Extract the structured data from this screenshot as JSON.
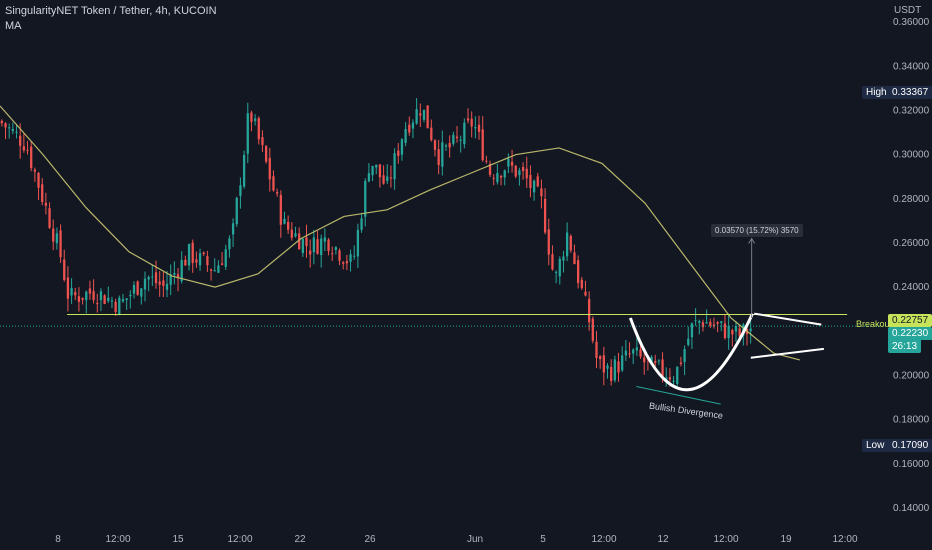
{
  "header": {
    "symbol": "SingularityNET Token / Tether, 4h, KUCOIN",
    "indicator": "MA"
  },
  "axis": {
    "currency": "USDT"
  },
  "tags": {
    "high_label": "High",
    "high_value": "0.33367",
    "low_label": "Low",
    "low_value": "0.17090",
    "breakout_label": "Breakout",
    "breakout_value": "0.22757",
    "current_value": "0.22230",
    "countdown": "26:13"
  },
  "annotations": {
    "measure": "0.03570 (15.72%) 3570",
    "divergence": "Bullish Divergence"
  },
  "colors": {
    "background": "#131722",
    "up": "#26a69a",
    "down": "#ef5350",
    "ma": "#b9b76a",
    "breakout": "#c6e35a",
    "current": "#26a69a",
    "tag_dark": "#1e2a44"
  },
  "chart_data": {
    "type": "candlestick",
    "title": "SingularityNET Token / Tether, 4h, KUCOIN",
    "ylabel": "USDT",
    "ylim": [
      0.13,
      0.37
    ],
    "y_ticks": [
      "0.36000",
      "0.34000",
      "0.32000",
      "0.30000",
      "0.28000",
      "0.26000",
      "0.24000",
      "0.20000",
      "0.18000",
      "0.16000",
      "0.14000"
    ],
    "x_ticks": [
      "8",
      "12:00",
      "15",
      "12:00",
      "22",
      "26",
      "Jun",
      "5",
      "12:00",
      "12",
      "12:00",
      "19",
      "12:00"
    ],
    "series": [
      {
        "name": "MA",
        "points": [
          [
            0.0,
            0.322
          ],
          [
            0.05,
            0.3
          ],
          [
            0.1,
            0.276
          ],
          [
            0.15,
            0.256
          ],
          [
            0.2,
            0.245
          ],
          [
            0.25,
            0.24
          ],
          [
            0.3,
            0.246
          ],
          [
            0.35,
            0.262
          ],
          [
            0.4,
            0.272
          ],
          [
            0.45,
            0.275
          ],
          [
            0.5,
            0.284
          ],
          [
            0.55,
            0.292
          ],
          [
            0.6,
            0.3
          ],
          [
            0.65,
            0.303
          ],
          [
            0.7,
            0.296
          ],
          [
            0.75,
            0.278
          ],
          [
            0.8,
            0.252
          ],
          [
            0.85,
            0.226
          ],
          [
            0.9,
            0.21
          ],
          [
            0.93,
            0.207
          ]
        ]
      }
    ],
    "price_path": [
      [
        0.0,
        0.315
      ],
      [
        0.03,
        0.305
      ],
      [
        0.05,
        0.28
      ],
      [
        0.07,
        0.255
      ],
      [
        0.08,
        0.235
      ],
      [
        0.11,
        0.238
      ],
      [
        0.14,
        0.232
      ],
      [
        0.17,
        0.245
      ],
      [
        0.19,
        0.24
      ],
      [
        0.22,
        0.255
      ],
      [
        0.25,
        0.248
      ],
      [
        0.27,
        0.262
      ],
      [
        0.29,
        0.32
      ],
      [
        0.31,
        0.295
      ],
      [
        0.33,
        0.268
      ],
      [
        0.36,
        0.258
      ],
      [
        0.38,
        0.262
      ],
      [
        0.41,
        0.25
      ],
      [
        0.43,
        0.298
      ],
      [
        0.45,
        0.285
      ],
      [
        0.47,
        0.312
      ],
      [
        0.49,
        0.322
      ],
      [
        0.51,
        0.3
      ],
      [
        0.53,
        0.305
      ],
      [
        0.55,
        0.315
      ],
      [
        0.57,
        0.292
      ],
      [
        0.59,
        0.295
      ],
      [
        0.61,
        0.29
      ],
      [
        0.63,
        0.278
      ],
      [
        0.645,
        0.242
      ],
      [
        0.66,
        0.265
      ],
      [
        0.67,
        0.248
      ],
      [
        0.685,
        0.225
      ],
      [
        0.695,
        0.205
      ],
      [
        0.71,
        0.202
      ],
      [
        0.735,
        0.21
      ],
      [
        0.76,
        0.203
      ],
      [
        0.785,
        0.2
      ],
      [
        0.805,
        0.222
      ],
      [
        0.815,
        0.225
      ],
      [
        0.84,
        0.221
      ],
      [
        0.86,
        0.218
      ],
      [
        0.875,
        0.222
      ]
    ],
    "levels": {
      "high": 0.33367,
      "low": 0.1709,
      "breakout": 0.22757,
      "current": 0.2223
    }
  }
}
